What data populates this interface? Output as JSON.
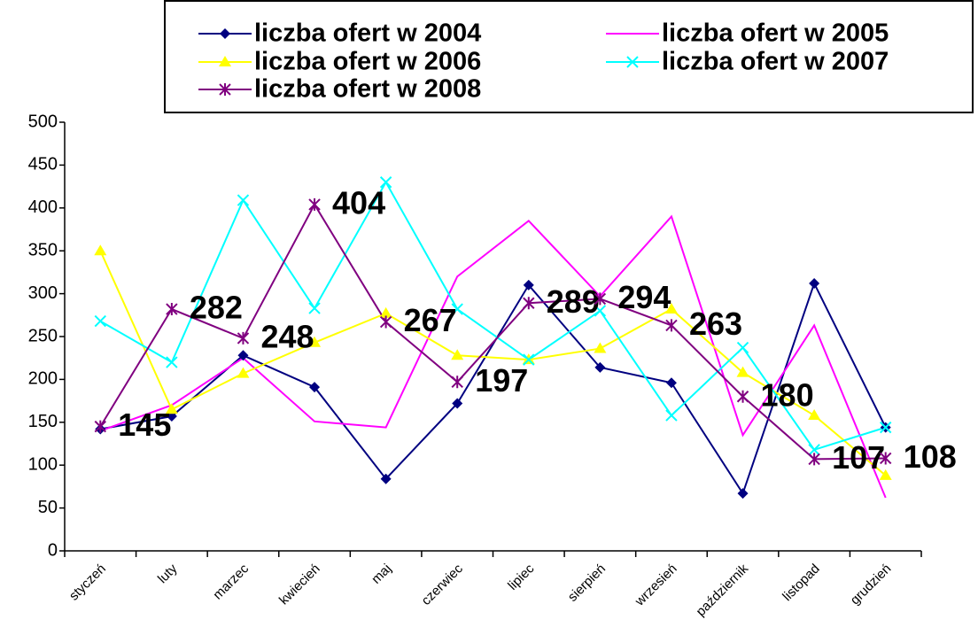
{
  "chart_data": {
    "type": "line",
    "categories": [
      "styczeń",
      "luty",
      "marzec",
      "kwiecień",
      "maj",
      "czerwiec",
      "lipiec",
      "sierpień",
      "wrzesień",
      "październik",
      "listopad",
      "grudzień"
    ],
    "series": [
      {
        "name": "liczba ofert w 2004",
        "color": "#000080",
        "marker": "diamond",
        "values": [
          142,
          157,
          228,
          191,
          84,
          172,
          310,
          214,
          196,
          67,
          312,
          144
        ]
      },
      {
        "name": "liczba ofert w 2005",
        "color": "#ff00ff",
        "marker": "none",
        "values": [
          140,
          170,
          225,
          151,
          144,
          320,
          385,
          297,
          390,
          135,
          263,
          62
        ]
      },
      {
        "name": "liczba ofert w 2006",
        "color": "#ffff00",
        "marker": "triangle",
        "values": [
          350,
          165,
          207,
          243,
          277,
          228,
          223,
          236,
          282,
          208,
          158,
          88
        ]
      },
      {
        "name": "liczba ofert w 2007",
        "color": "#00ffff",
        "marker": "x",
        "values": [
          268,
          220,
          409,
          283,
          430,
          282,
          223,
          280,
          158,
          237,
          118,
          144
        ]
      },
      {
        "name": "liczba ofert w 2008",
        "color": "#800080",
        "marker": "star",
        "data_labels": true,
        "values": [
          145,
          282,
          248,
          404,
          267,
          197,
          289,
          294,
          263,
          180,
          107,
          108
        ]
      }
    ],
    "ylim": [
      0,
      500
    ],
    "yticks": [
      0,
      50,
      100,
      150,
      200,
      250,
      300,
      350,
      400,
      450,
      500
    ],
    "grid": false,
    "legend": "top"
  }
}
